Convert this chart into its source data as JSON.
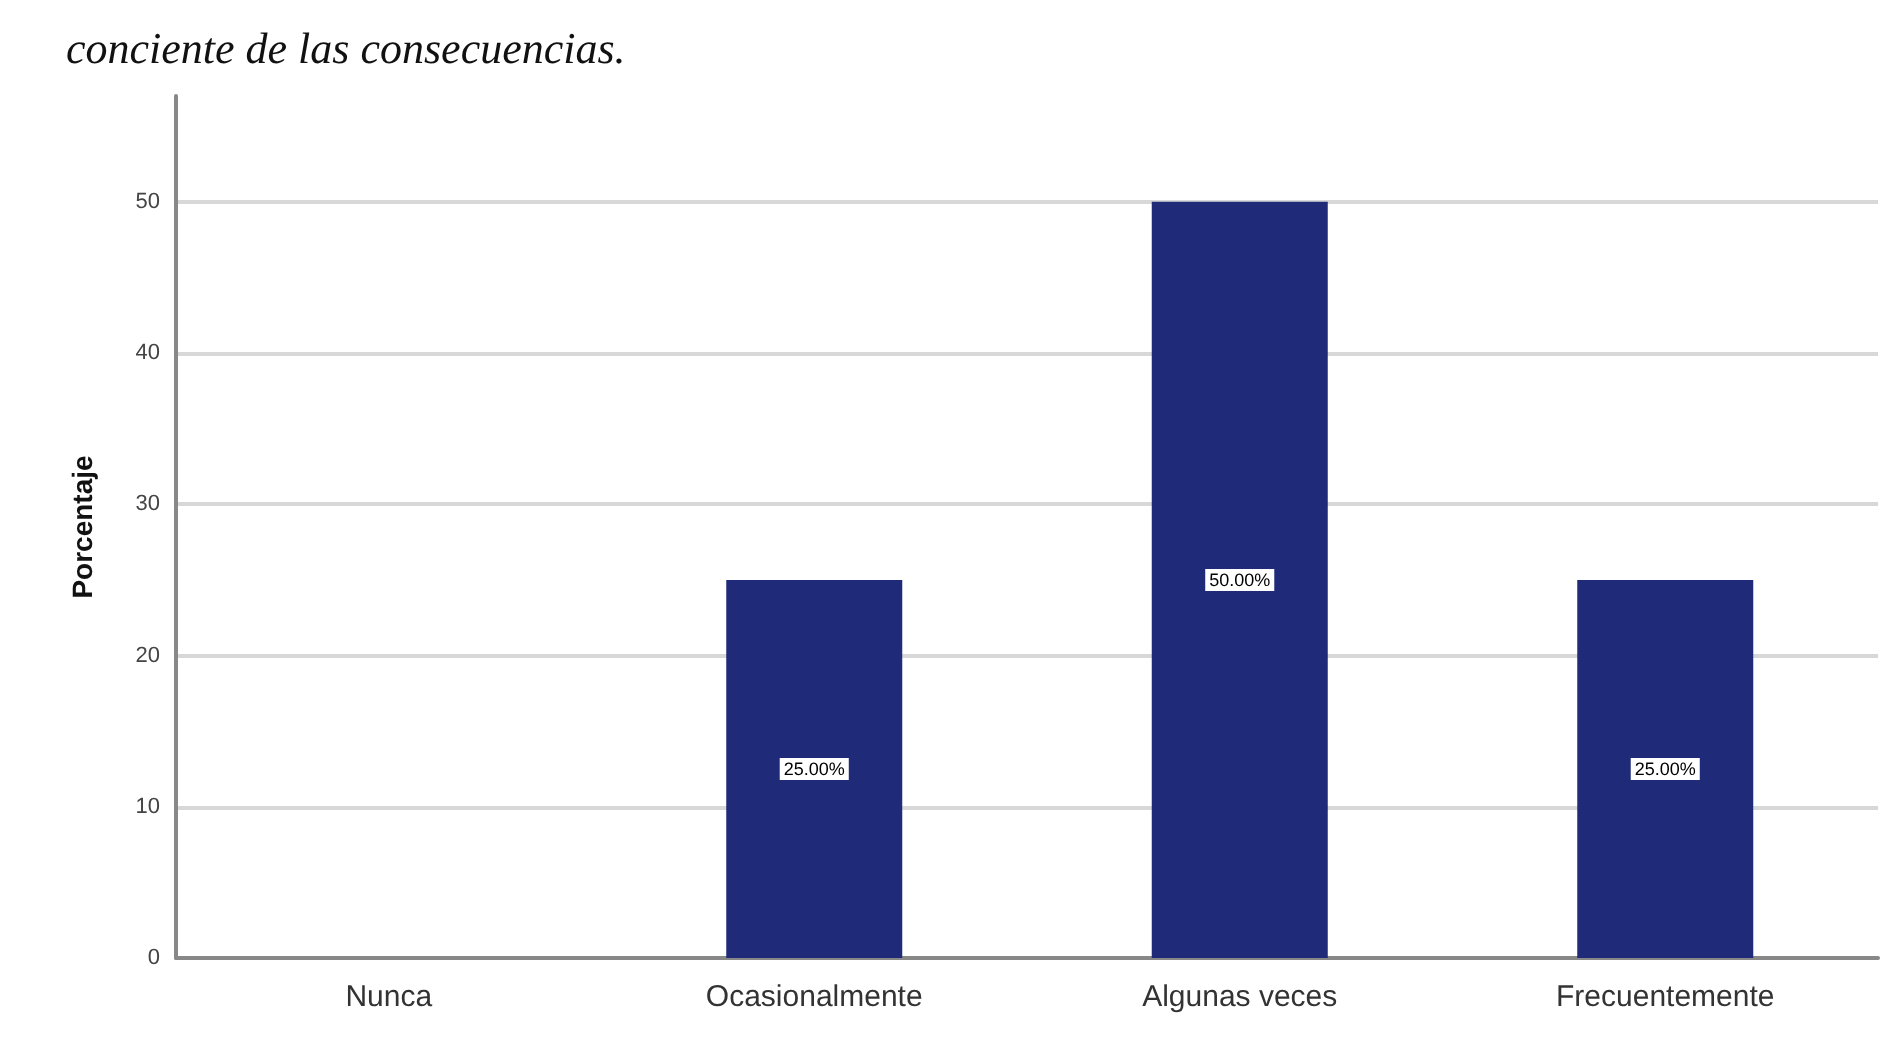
{
  "chart_data": {
    "type": "bar",
    "title": "conciente de las consecuencias.",
    "ylabel": "Porcentaje",
    "categories": [
      "Nunca",
      "Ocasionalmente",
      "Algunas veces",
      "Frecuentemente"
    ],
    "values": [
      0,
      25,
      50,
      25
    ],
    "color": "#1f2a78",
    "value_labels": [
      null,
      "25.00%",
      "50.00%",
      "25.00%"
    ],
    "ylim": [
      0,
      57
    ],
    "yticks": [
      0,
      10,
      20,
      30,
      40,
      50
    ],
    "grid": "y"
  }
}
